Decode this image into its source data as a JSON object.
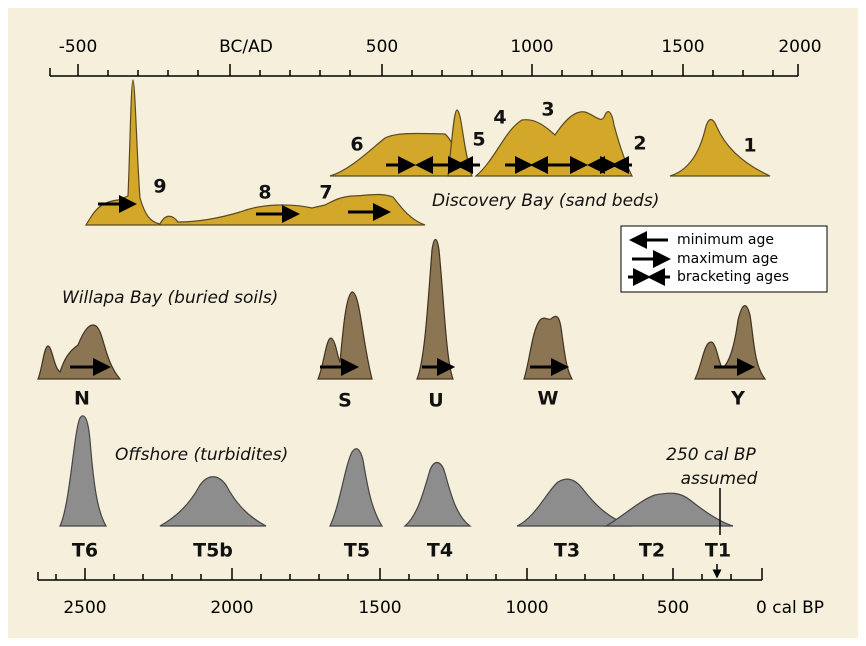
{
  "top_axis": {
    "ticks": [
      "-500",
      "BC/AD",
      "500",
      "1000",
      "1500",
      "2000"
    ]
  },
  "bottom_axis": {
    "ticks": [
      "2500",
      "2000",
      "1500",
      "1000",
      "500",
      "0 cal BP"
    ]
  },
  "discovery_bay": {
    "title": "Discovery Bay (sand beds)",
    "labels": [
      "9",
      "8",
      "7",
      "6",
      "5",
      "4",
      "3",
      "2",
      "1"
    ]
  },
  "willapa_bay": {
    "title": "Willapa Bay (buried soils)",
    "labels": [
      "N",
      "S",
      "U",
      "W",
      "Y"
    ]
  },
  "offshore": {
    "title": "Offshore (turbidites)",
    "labels": [
      "T6",
      "T5b",
      "T5",
      "T4",
      "T3",
      "T2",
      "T1"
    ],
    "note": [
      "250 cal BP",
      "assumed"
    ]
  },
  "legend": {
    "items": [
      "minimum age",
      "maximum age",
      "bracketing ages"
    ]
  }
}
